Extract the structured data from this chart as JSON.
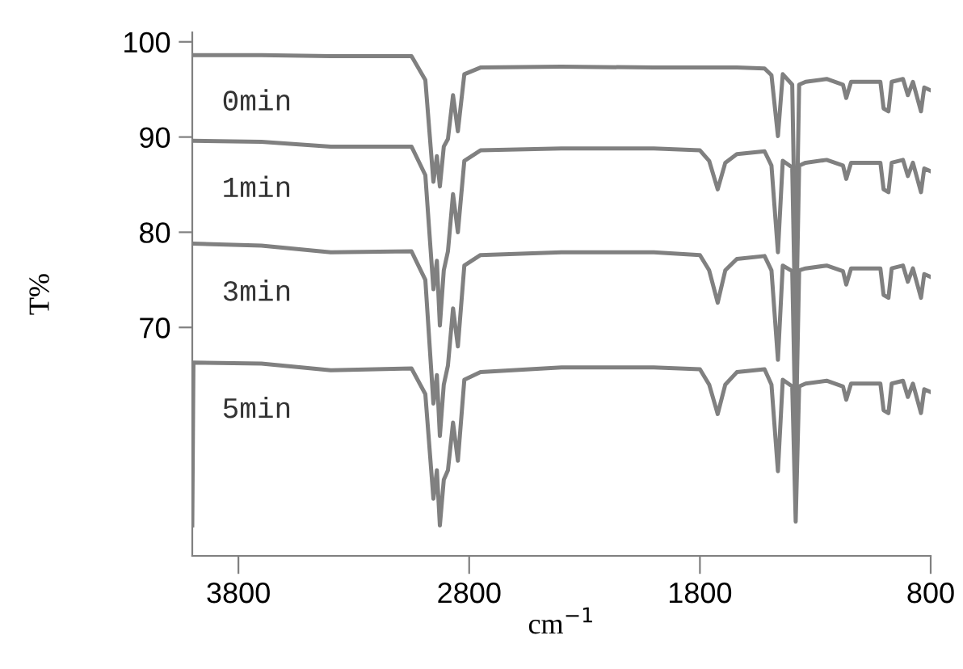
{
  "chart_data": {
    "type": "line",
    "xlabel": "cm$^{−1}$",
    "ylabel": "T%",
    "xlim": [
      4000,
      800
    ],
    "xticks": [
      3800,
      2800,
      1800,
      800
    ],
    "ylim": [
      46,
      101
    ],
    "yticks": [
      70,
      80,
      90,
      100
    ],
    "grid": false,
    "legend": false,
    "marker": "none",
    "line_style": "solid",
    "x": [
      3998,
      3700,
      3400,
      3050,
      2990,
      2955,
      2940,
      2927,
      2910,
      2892,
      2870,
      2849,
      2821,
      2751,
      2400,
      2000,
      1800,
      1760,
      1723,
      1690,
      1640,
      1520,
      1490,
      1462,
      1441,
      1400,
      1385,
      1370,
      1342,
      1251,
      1180,
      1166,
      1145,
      1018,
      1004,
      983,
      969,
      920,
      899,
      877,
      842,
      828,
      800
    ],
    "series": [
      {
        "name": "0min",
        "color": "#808080",
        "values": [
          98.6,
          98.6,
          98.5,
          98.5,
          96,
          85.3,
          88,
          84.8,
          89,
          89.8,
          94.4,
          90.6,
          96.6,
          97.3,
          97.4,
          97.3,
          97.3,
          97.3,
          97.3,
          97.3,
          97.3,
          97.2,
          96.5,
          90.1,
          96.6,
          95.5,
          75,
          95.5,
          95.8,
          96.1,
          95.5,
          94.1,
          95.8,
          95.8,
          93.0,
          92.7,
          95.8,
          96.1,
          94.4,
          95.8,
          92.7,
          95.2,
          94.9
        ]
      },
      {
        "name": "1min",
        "color": "#808080",
        "values": [
          89.6,
          89.5,
          89.0,
          89.0,
          86,
          74,
          77,
          70.2,
          76,
          78,
          84,
          80,
          87.5,
          88.6,
          88.8,
          88.8,
          88.6,
          87.5,
          84.5,
          87.3,
          88.2,
          88.5,
          87,
          77.9,
          87.5,
          86.8,
          68,
          87,
          87.3,
          87.6,
          87,
          85.6,
          87.3,
          87.3,
          84.5,
          84.2,
          87.3,
          87.6,
          85.9,
          87.3,
          84.2,
          86.7,
          86.4
        ]
      },
      {
        "name": "3min",
        "color": "#808080",
        "values": [
          78.8,
          78.6,
          77.9,
          78.0,
          75,
          62,
          65,
          58.6,
          64,
          66,
          72,
          68,
          76.5,
          77.6,
          77.9,
          77.9,
          77.6,
          76,
          72.6,
          76,
          77.2,
          77.5,
          76,
          66.6,
          76.5,
          75.9,
          58,
          76,
          76.2,
          76.5,
          75.9,
          74.5,
          76.2,
          76.2,
          73.4,
          73.1,
          76.2,
          76.5,
          74.8,
          76.2,
          73.1,
          75.6,
          75.3
        ]
      },
      {
        "name": "5min",
        "color": "#808080",
        "x": [
          4000,
          3995,
          3700,
          3400,
          3050,
          2990,
          2955,
          2940,
          2927,
          2910,
          2892,
          2870,
          2849,
          2821,
          2751,
          2400,
          2000,
          1800,
          1760,
          1723,
          1690,
          1640,
          1520,
          1490,
          1462,
          1441,
          1400,
          1385,
          1370,
          1342,
          1251,
          1180,
          1166,
          1145,
          1018,
          1004,
          983,
          969,
          920,
          899,
          877,
          842,
          828,
          800
        ],
        "values": [
          49.2,
          66.3,
          66.2,
          65.5,
          65.7,
          63,
          52,
          55,
          49.2,
          54,
          55,
          60,
          56,
          64.5,
          65.3,
          65.8,
          65.8,
          65.6,
          64,
          60.9,
          64,
          65.3,
          65.6,
          64,
          54.9,
          64.5,
          63.8,
          49.6,
          63.8,
          64.1,
          64.4,
          63.8,
          62.4,
          64.1,
          64.1,
          61.3,
          61.0,
          64.1,
          64.4,
          62.7,
          64.1,
          61.0,
          63.5,
          63.2
        ]
      }
    ]
  }
}
